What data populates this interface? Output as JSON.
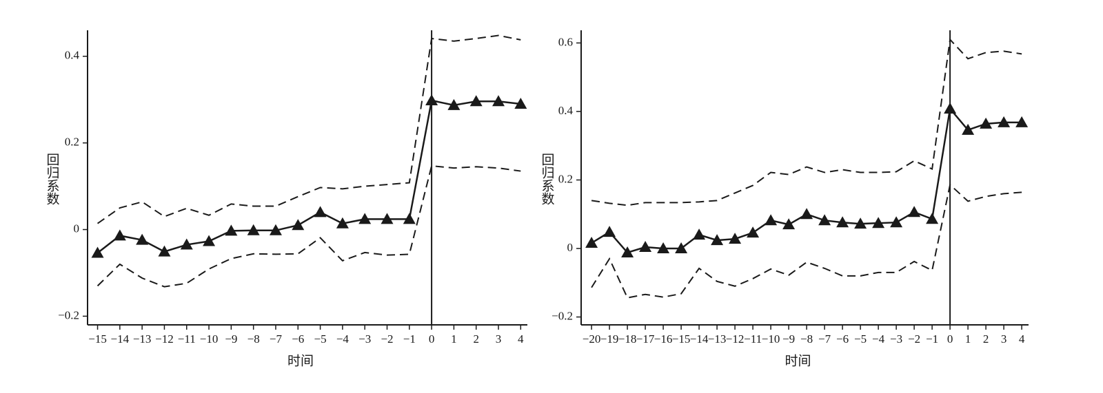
{
  "chart_data": [
    {
      "type": "line",
      "ylabel": "回归系数",
      "xlabel": "时间",
      "x": [
        -15,
        -14,
        -13,
        -12,
        -11,
        -10,
        -9,
        -8,
        -7,
        -6,
        -5,
        -4,
        -3,
        -2,
        -1,
        0,
        1,
        2,
        3,
        4
      ],
      "series": [
        {
          "style": "solid-triangle",
          "color": "#1a1a1a",
          "values": [
            -0.054,
            -0.014,
            -0.024,
            -0.051,
            -0.035,
            -0.027,
            -0.003,
            -0.002,
            -0.002,
            0.01,
            0.04,
            0.014,
            0.024,
            0.024,
            0.024,
            0.298,
            0.287,
            0.296,
            0.296,
            0.29
          ]
        },
        {
          "style": "dashed",
          "color": "#1a1a1a",
          "values": [
            0.014,
            0.05,
            0.064,
            0.03,
            0.049,
            0.033,
            0.059,
            0.054,
            0.054,
            0.076,
            0.097,
            0.094,
            0.1,
            0.104,
            0.108,
            0.441,
            0.435,
            0.441,
            0.448,
            0.438
          ]
        },
        {
          "style": "dashed",
          "color": "#1a1a1a",
          "values": [
            -0.13,
            -0.08,
            -0.112,
            -0.132,
            -0.124,
            -0.091,
            -0.067,
            -0.056,
            -0.057,
            -0.056,
            -0.019,
            -0.072,
            -0.053,
            -0.059,
            -0.057,
            0.147,
            0.142,
            0.145,
            0.142,
            0.135
          ]
        }
      ],
      "vline": 0,
      "xlim": [
        -15.45,
        4.3
      ],
      "ylim": [
        -0.22,
        0.46
      ],
      "xticks": [
        {
          "value": -15,
          "label": "−15"
        },
        {
          "value": -14,
          "label": "−14"
        },
        {
          "value": -13,
          "label": "−13"
        },
        {
          "value": -12,
          "label": "−12"
        },
        {
          "value": -11,
          "label": "−11"
        },
        {
          "value": -10,
          "label": "−10"
        },
        {
          "value": -9,
          "label": "−9"
        },
        {
          "value": -8,
          "label": "−8"
        },
        {
          "value": -7,
          "label": "−7"
        },
        {
          "value": -6,
          "label": "−6"
        },
        {
          "value": -5,
          "label": "−5"
        },
        {
          "value": -4,
          "label": "−4"
        },
        {
          "value": -3,
          "label": "−3"
        },
        {
          "value": -2,
          "label": "−2"
        },
        {
          "value": -1,
          "label": "−1"
        },
        0,
        1,
        2,
        3,
        4
      ],
      "yticks": [
        {
          "value": -0.2,
          "label": "−0.2"
        },
        0,
        0.2,
        0.4
      ]
    },
    {
      "type": "line",
      "ylabel": "回归系数",
      "xlabel": "时间",
      "x": [
        -20,
        -19,
        -18,
        -17,
        -16,
        -15,
        -14,
        -13,
        -12,
        -11,
        -10,
        -9,
        -8,
        -7,
        -6,
        -5,
        -4,
        -3,
        -2,
        -1,
        0,
        1,
        2,
        3,
        4
      ],
      "series": [
        {
          "style": "solid-triangle",
          "color": "#1a1a1a",
          "values": [
            0.016,
            0.048,
            -0.012,
            0.004,
            0,
            0,
            0.04,
            0.024,
            0.028,
            0.046,
            0.082,
            0.07,
            0.1,
            0.082,
            0.076,
            0.072,
            0.074,
            0.076,
            0.106,
            0.086,
            0.408,
            0.346,
            0.364,
            0.368,
            0.368
          ]
        },
        {
          "style": "dashed",
          "color": "#1a1a1a",
          "values": [
            0.14,
            0.132,
            0.126,
            0.134,
            0.134,
            0.134,
            0.136,
            0.14,
            0.162,
            0.184,
            0.222,
            0.216,
            0.238,
            0.222,
            0.23,
            0.222,
            0.222,
            0.224,
            0.256,
            0.232,
            0.61,
            0.554,
            0.572,
            0.576,
            0.568
          ]
        },
        {
          "style": "dashed",
          "color": "#1a1a1a",
          "values": [
            -0.114,
            -0.03,
            -0.144,
            -0.134,
            -0.142,
            -0.132,
            -0.058,
            -0.096,
            -0.11,
            -0.088,
            -0.06,
            -0.078,
            -0.04,
            -0.058,
            -0.08,
            -0.08,
            -0.07,
            -0.07,
            -0.038,
            -0.064,
            0.186,
            0.138,
            0.152,
            0.16,
            0.164
          ]
        }
      ],
      "vline": 0,
      "xlim": [
        -20.58,
        4.38
      ],
      "ylim": [
        -0.223,
        0.637
      ],
      "xticks": [
        {
          "value": -20,
          "label": "−20"
        },
        {
          "value": -19,
          "label": "−19"
        },
        {
          "value": -18,
          "label": "−18"
        },
        {
          "value": -17,
          "label": "−17"
        },
        {
          "value": -16,
          "label": "−16"
        },
        {
          "value": -15,
          "label": "−15"
        },
        {
          "value": -14,
          "label": "−14"
        },
        {
          "value": -13,
          "label": "−13"
        },
        {
          "value": -12,
          "label": "−12"
        },
        {
          "value": -11,
          "label": "−11"
        },
        {
          "value": -10,
          "label": "−10"
        },
        {
          "value": -9,
          "label": "−9"
        },
        {
          "value": -8,
          "label": "−8"
        },
        {
          "value": -7,
          "label": "−7"
        },
        {
          "value": -6,
          "label": "−6"
        },
        {
          "value": -5,
          "label": "−5"
        },
        {
          "value": -4,
          "label": "−4"
        },
        {
          "value": -3,
          "label": "−3"
        },
        {
          "value": -2,
          "label": "−2"
        },
        {
          "value": -1,
          "label": "−1"
        },
        0,
        1,
        2,
        3,
        4
      ],
      "yticks": [
        {
          "value": -0.2,
          "label": "−0.2"
        },
        0,
        0.2,
        0.4,
        0.6
      ]
    }
  ]
}
